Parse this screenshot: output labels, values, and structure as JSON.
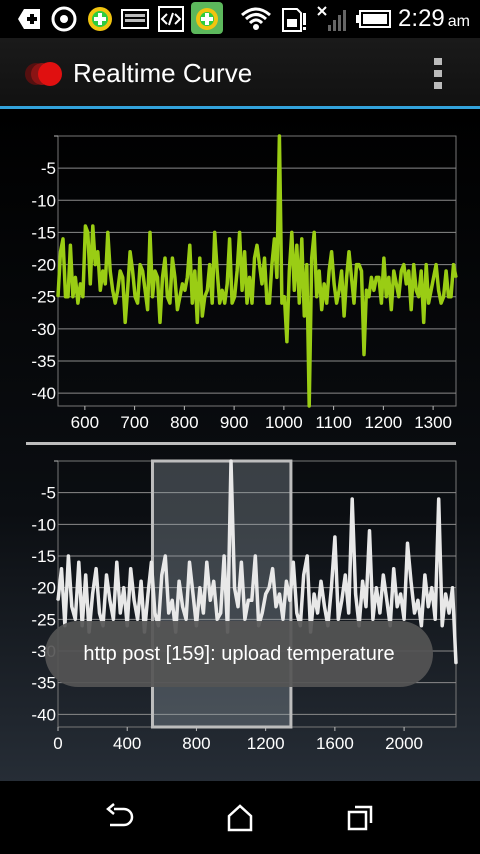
{
  "status_bar": {
    "time": "2:29",
    "ampm": "am",
    "icons": [
      "add-notification-icon",
      "sync-icon",
      "app-badge-icon",
      "keyboard-icon",
      "code-icon",
      "app-badge-icon",
      "wifi-icon",
      "sd-card-alert-icon",
      "signal-off-icon",
      "battery-icon"
    ]
  },
  "action_bar": {
    "title": "Realtime Curve",
    "logo_icon": "red-dot-logo-icon",
    "menu_icon": "overflow-menu-icon"
  },
  "toast": {
    "message": "http post [159]: upload temperature"
  },
  "nav_bar": {
    "icons": [
      "back-icon",
      "home-icon",
      "recent-apps-icon"
    ]
  },
  "colors": {
    "accent": "#33a3dc",
    "main_series": "#9acd14",
    "overview_series": "#e8e8e8"
  },
  "chart_data": [
    {
      "type": "line",
      "title": "",
      "xlabel": "",
      "ylabel": "",
      "xlim": [
        546,
        1346
      ],
      "ylim": [
        -42,
        0
      ],
      "x_ticks": [
        600,
        700,
        800,
        900,
        1000,
        1100,
        1200,
        1300
      ],
      "y_ticks": [
        -5,
        -10,
        -15,
        -20,
        -25,
        -30,
        -35,
        -40
      ],
      "grid": true,
      "series": [
        {
          "name": "",
          "x": [
            546,
            551,
            556,
            561,
            566,
            571,
            576,
            581,
            586,
            591,
            596,
            601,
            606,
            611,
            616,
            621,
            626,
            631,
            636,
            641,
            646,
            651,
            656,
            661,
            666,
            671,
            676,
            681,
            686,
            691,
            696,
            701,
            706,
            711,
            716,
            721,
            726,
            731,
            736,
            741,
            746,
            751,
            756,
            761,
            766,
            771,
            776,
            781,
            786,
            791,
            796,
            801,
            806,
            811,
            816,
            821,
            826,
            831,
            836,
            841,
            846,
            851,
            856,
            861,
            866,
            871,
            876,
            881,
            886,
            891,
            896,
            901,
            906,
            911,
            916,
            921,
            926,
            931,
            936,
            941,
            946,
            951,
            956,
            961,
            966,
            971,
            976,
            981,
            986,
            991,
            996,
            1001,
            1006,
            1011,
            1016,
            1021,
            1026,
            1031,
            1036,
            1041,
            1046,
            1051,
            1056,
            1061,
            1066,
            1071,
            1076,
            1081,
            1086,
            1091,
            1096,
            1101,
            1106,
            1111,
            1116,
            1121,
            1126,
            1131,
            1136,
            1141,
            1146,
            1151,
            1156,
            1161,
            1166,
            1171,
            1176,
            1181,
            1186,
            1191,
            1196,
            1201,
            1206,
            1211,
            1216,
            1221,
            1226,
            1231,
            1236,
            1241,
            1246,
            1251,
            1256,
            1261,
            1266,
            1271,
            1276,
            1281,
            1286,
            1291,
            1296,
            1301,
            1306,
            1311,
            1316,
            1321,
            1326,
            1331,
            1336,
            1341,
            1346
          ],
          "values": [
            -25,
            -18,
            -16,
            -25,
            -25,
            -17,
            -25,
            -22,
            -26,
            -23,
            -25,
            -14,
            -15,
            -23,
            -14,
            -20,
            -18,
            -24,
            -21,
            -23,
            -15,
            -21,
            -24,
            -26,
            -24,
            -21,
            -22,
            -29,
            -24,
            -18,
            -21,
            -25,
            -26,
            -20,
            -21,
            -24,
            -27,
            -15,
            -25,
            -21,
            -22,
            -29,
            -22,
            -19,
            -25,
            -26,
            -19,
            -22,
            -27,
            -25,
            -23,
            -24,
            -22,
            -17,
            -26,
            -21,
            -29,
            -19,
            -28,
            -25,
            -24,
            -20,
            -26,
            -15,
            -21,
            -26,
            -24,
            -26,
            -23,
            -16,
            -26,
            -25,
            -21,
            -15,
            -24,
            -18,
            -26,
            -22,
            -26,
            -19,
            -17,
            -20,
            -23,
            -19,
            -26,
            -26,
            -20,
            -16,
            -22,
            0,
            -26,
            -25,
            -32,
            -21,
            -15,
            -24,
            -17,
            -26,
            -16,
            -28,
            -20,
            -42,
            -19,
            -15,
            -25,
            -21,
            -27,
            -23,
            -26,
            -21,
            -18,
            -23,
            -26,
            -24,
            -21,
            -28,
            -22,
            -18,
            -22,
            -26,
            -20,
            -20,
            -21,
            -34,
            -24,
            -25,
            -22,
            -24,
            -22,
            -22,
            -26,
            -19,
            -25,
            -22,
            -27,
            -21,
            -23,
            -25,
            -21,
            -20,
            -23,
            -21,
            -27,
            -20,
            -24,
            -25,
            -21,
            -29,
            -20,
            -26,
            -24,
            -22,
            -20,
            -24,
            -26,
            -25,
            -21,
            -25,
            -25,
            -20,
            -22
          ]
        }
      ]
    },
    {
      "type": "line",
      "title": "",
      "xlabel": "",
      "ylabel": "",
      "xlim": [
        0,
        2300
      ],
      "ylim": [
        -42,
        0
      ],
      "x_ticks": [
        0,
        400,
        800,
        1200,
        1600,
        2000
      ],
      "y_ticks": [
        -5,
        -10,
        -15,
        -20,
        -25,
        -30,
        -35,
        -40
      ],
      "grid": true,
      "viewport_x_range": [
        546,
        1346
      ],
      "series": [
        {
          "name": "",
          "x": [
            0,
            20,
            40,
            60,
            80,
            100,
            120,
            140,
            160,
            180,
            200,
            220,
            240,
            260,
            280,
            300,
            320,
            340,
            360,
            380,
            400,
            420,
            440,
            460,
            480,
            500,
            520,
            540,
            560,
            580,
            600,
            620,
            640,
            660,
            680,
            700,
            720,
            740,
            760,
            780,
            800,
            820,
            840,
            860,
            880,
            900,
            920,
            940,
            960,
            980,
            1000,
            1020,
            1040,
            1060,
            1080,
            1100,
            1120,
            1140,
            1160,
            1180,
            1200,
            1220,
            1240,
            1260,
            1280,
            1300,
            1320,
            1340,
            1360,
            1380,
            1400,
            1420,
            1440,
            1460,
            1480,
            1500,
            1520,
            1540,
            1560,
            1580,
            1600,
            1620,
            1640,
            1660,
            1680,
            1700,
            1720,
            1740,
            1760,
            1780,
            1800,
            1820,
            1840,
            1860,
            1880,
            1900,
            1920,
            1940,
            1960,
            1980,
            2000,
            2020,
            2040,
            2060,
            2080,
            2100,
            2120,
            2140,
            2160,
            2180,
            2200,
            2220,
            2240,
            2260,
            2280,
            2300
          ],
          "values": [
            -22,
            -17,
            -26,
            -15,
            -23,
            -25,
            -16,
            -26,
            -18,
            -27,
            -21,
            -17,
            -24,
            -26,
            -18,
            -22,
            -25,
            -16,
            -24,
            -20,
            -26,
            -17,
            -22,
            -25,
            -19,
            -27,
            -21,
            -16,
            -24,
            -26,
            -18,
            -15,
            -24,
            -22,
            -27,
            -19,
            -23,
            -25,
            -16,
            -21,
            -26,
            -20,
            -24,
            -16,
            -22,
            -19,
            -25,
            -24,
            -15,
            -27,
            0,
            -20,
            -23,
            -16,
            -25,
            -22,
            -22,
            -15,
            -26,
            -24,
            -21,
            -20,
            -17,
            -23,
            -21,
            -25,
            -19,
            -22,
            -16,
            -24,
            -26,
            -18,
            -15,
            -27,
            -21,
            -24,
            -19,
            -23,
            -26,
            -20,
            -12,
            -25,
            -22,
            -18,
            -24,
            -6,
            -21,
            -26,
            -19,
            -23,
            -11,
            -25,
            -20,
            -24,
            -18,
            -22,
            -26,
            -17,
            -23,
            -21,
            -25,
            -13,
            -19,
            -24,
            -22,
            -26,
            -18,
            -23,
            -20,
            -25,
            -6,
            -26,
            -21,
            -24,
            -20,
            -32
          ]
        }
      ]
    }
  ]
}
